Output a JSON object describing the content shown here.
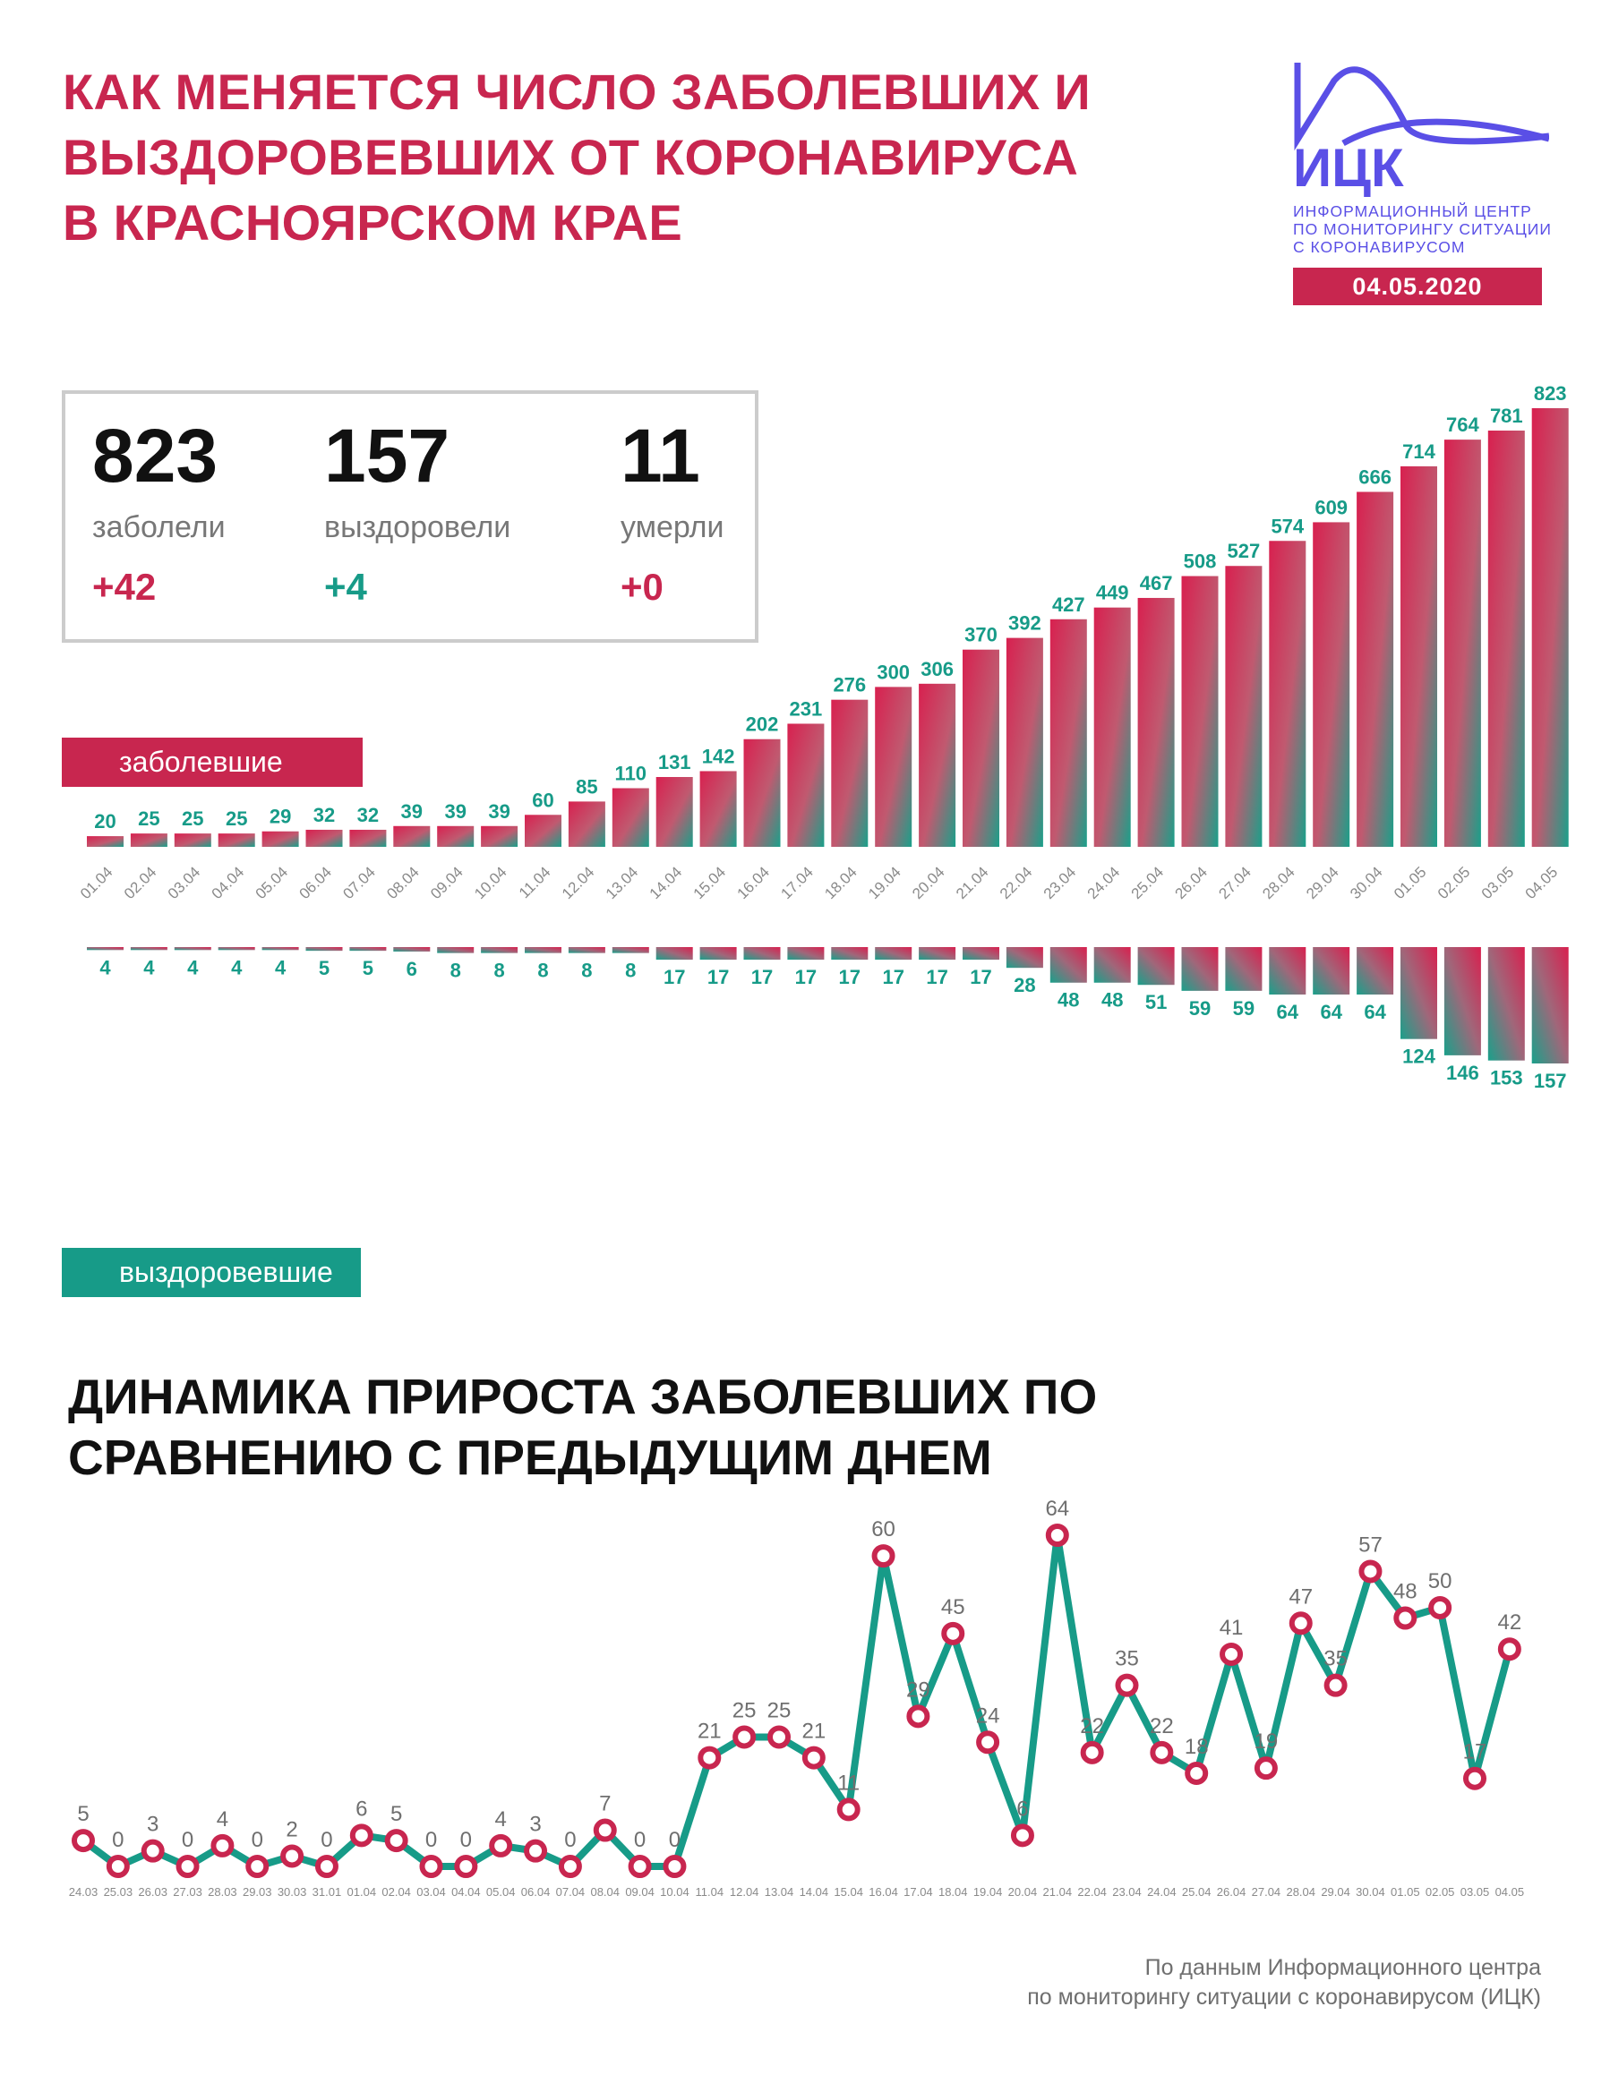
{
  "header": {
    "title": "КАК МЕНЯЕТСЯ ЧИСЛО ЗАБОЛЕВШИХ И\nВЫЗДОРОВЕВШИХ ОТ КОРОНАВИРУСА\nВ КРАСНОЯРСКОМ КРАЕ",
    "logo_name": "ИЦК",
    "logo_subtitle": "ИНФОРМАЦИОННЫЙ ЦЕНТР\nПО МОНИТОРИНГУ СИТУАЦИИ\nС КОРОНАВИРУСОМ",
    "date": "04.05.2020"
  },
  "stats": [
    {
      "value": "823",
      "label": "заболели",
      "delta": "+42",
      "color": "#c8264f"
    },
    {
      "value": "157",
      "label": "выздоровели",
      "delta": "+4",
      "color": "#179b88"
    },
    {
      "value": "11",
      "label": "умерли",
      "delta": "+0",
      "color": "#c8264f"
    }
  ],
  "legend": {
    "infected": "заболевшие",
    "recovered": "выздоровевшие"
  },
  "colors": {
    "accent": "#c8264f",
    "green": "#179b88",
    "logo": "#5a4fe6"
  },
  "chart_data": [
    {
      "type": "bar",
      "categories": [
        "01.04",
        "02.04",
        "03.04",
        "04.04",
        "05.04",
        "06.04",
        "07.04",
        "08.04",
        "09.04",
        "10.04",
        "11.04",
        "12.04",
        "13.04",
        "14.04",
        "15.04",
        "16.04",
        "17.04",
        "18.04",
        "19.04",
        "20.04",
        "21.04",
        "22.04",
        "23.04",
        "24.04",
        "25.04",
        "26.04",
        "27.04",
        "28.04",
        "29.04",
        "30.04",
        "01.05",
        "02.05",
        "03.05",
        "04.05"
      ],
      "series": [
        {
          "name": "заболевшие",
          "values": [
            20,
            25,
            25,
            25,
            29,
            32,
            32,
            39,
            39,
            39,
            60,
            85,
            110,
            131,
            142,
            202,
            231,
            276,
            300,
            306,
            370,
            392,
            427,
            449,
            467,
            508,
            527,
            574,
            609,
            666,
            714,
            764,
            781,
            823
          ]
        },
        {
          "name": "выздоровевшие",
          "values": [
            4,
            4,
            4,
            4,
            4,
            5,
            5,
            6,
            8,
            8,
            8,
            8,
            8,
            17,
            17,
            17,
            17,
            17,
            17,
            17,
            17,
            28,
            48,
            48,
            51,
            59,
            59,
            64,
            64,
            64,
            124,
            146,
            153,
            157
          ]
        }
      ]
    },
    {
      "type": "line",
      "title": "ДИНАМИКА ПРИРОСТА ЗАБОЛЕВШИХ ПО\nСРАВНЕНИЮ С ПРЕДЫДУЩИМ ДНЕМ",
      "x": [
        "24.03",
        "25.03",
        "26.03",
        "27.03",
        "28.03",
        "29.03",
        "30.03",
        "31.01",
        "01.04",
        "02.04",
        "03.04",
        "04.04",
        "05.04",
        "06.04",
        "07.04",
        "08.04",
        "09.04",
        "10.04",
        "11.04",
        "12.04",
        "13.04",
        "14.04",
        "15.04",
        "16.04",
        "17.04",
        "18.04",
        "19.04",
        "20.04",
        "21.04",
        "22.04",
        "23.04",
        "24.04",
        "25.04",
        "26.04",
        "27.04",
        "28.04",
        "29.04",
        "30.04",
        "01.05",
        "02.05",
        "03.05",
        "04.05"
      ],
      "values": [
        5,
        0,
        3,
        0,
        4,
        0,
        2,
        0,
        6,
        5,
        0,
        0,
        4,
        3,
        0,
        7,
        0,
        0,
        21,
        25,
        25,
        21,
        11,
        60,
        29,
        45,
        24,
        6,
        64,
        22,
        35,
        22,
        18,
        41,
        19,
        47,
        35,
        57,
        48,
        50,
        17,
        42
      ]
    }
  ],
  "footer": {
    "source": "По данным Информационного центра\nпо мониторингу ситуации с коронавирусом (ИЦК)"
  }
}
